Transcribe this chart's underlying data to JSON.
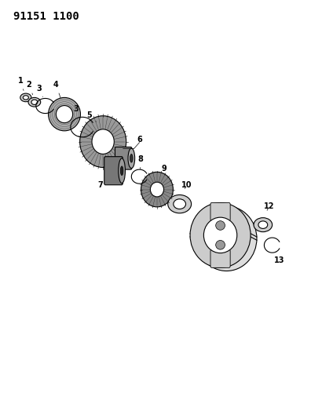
{
  "title_code": "91151 1100",
  "bg_color": "#ffffff",
  "line_color": "#000000",
  "title_fontsize": 10,
  "label_fontsize": 7
}
